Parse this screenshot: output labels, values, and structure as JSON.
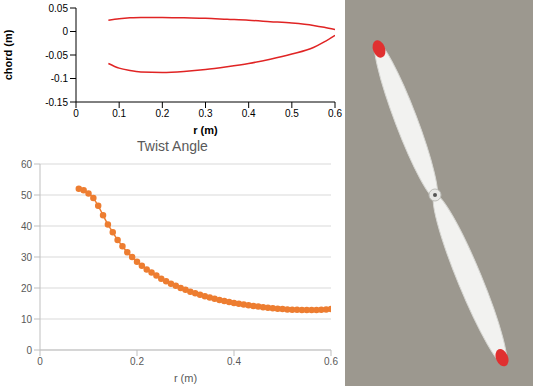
{
  "chart_data": [
    {
      "type": "line",
      "xlabel": "r (m)",
      "ylabel": "chord (m)",
      "x": [
        0.075,
        0.1,
        0.125,
        0.15,
        0.2,
        0.25,
        0.3,
        0.35,
        0.4,
        0.45,
        0.5,
        0.55,
        0.575,
        0.6
      ],
      "series": [
        {
          "color": "#e02424",
          "values": [
            0.024,
            0.027,
            0.029,
            0.03,
            0.03,
            0.029,
            0.028,
            0.026,
            0.024,
            0.021,
            0.018,
            0.013,
            0.009,
            0.004
          ]
        },
        {
          "color": "#e02424",
          "values": [
            -0.068,
            -0.078,
            -0.083,
            -0.086,
            -0.087,
            -0.085,
            -0.081,
            -0.075,
            -0.068,
            -0.059,
            -0.048,
            -0.034,
            -0.022,
            -0.008
          ]
        }
      ],
      "xlim": [
        0,
        0.6
      ],
      "xticks": [
        0,
        0.1,
        0.2,
        0.3,
        0.4,
        0.5,
        0.6
      ],
      "ylim": [
        -0.15,
        0.05
      ],
      "yticks": [
        -0.15,
        -0.1,
        -0.05,
        0,
        0.05
      ],
      "grid": false,
      "marker": "none",
      "line_style": "solid"
    },
    {
      "type": "line",
      "title": "Twist Angle",
      "xlabel": "r (m)",
      "x": [
        0.08,
        0.09,
        0.1,
        0.11,
        0.12,
        0.13,
        0.14,
        0.15,
        0.16,
        0.17,
        0.18,
        0.19,
        0.2,
        0.21,
        0.22,
        0.23,
        0.24,
        0.25,
        0.26,
        0.27,
        0.28,
        0.29,
        0.3,
        0.31,
        0.32,
        0.33,
        0.34,
        0.35,
        0.36,
        0.37,
        0.38,
        0.39,
        0.4,
        0.41,
        0.42,
        0.43,
        0.44,
        0.45,
        0.46,
        0.47,
        0.48,
        0.49,
        0.5,
        0.51,
        0.52,
        0.53,
        0.54,
        0.55,
        0.56,
        0.57,
        0.58,
        0.59,
        0.6
      ],
      "series": [
        {
          "color": "#ed7d31",
          "values": [
            52,
            51.5,
            50.5,
            49,
            46.5,
            43.5,
            40.5,
            38,
            35.5,
            33.5,
            31.5,
            30,
            28.5,
            27.2,
            26,
            25,
            24,
            23,
            22.2,
            21.4,
            20.7,
            20,
            19.4,
            18.8,
            18.3,
            17.8,
            17.3,
            16.9,
            16.5,
            16.1,
            15.8,
            15.5,
            15.2,
            14.9,
            14.7,
            14.4,
            14.2,
            14,
            13.8,
            13.6,
            13.5,
            13.3,
            13.2,
            13.1,
            13,
            13,
            12.9,
            12.9,
            12.9,
            12.9,
            13,
            13.1,
            13.2
          ]
        }
      ],
      "xlim": [
        0,
        0.6
      ],
      "xticks": [
        0,
        0.2,
        0.4,
        0.6
      ],
      "ylim": [
        0,
        60
      ],
      "yticks": [
        0,
        10,
        20,
        30,
        40,
        50,
        60
      ],
      "grid": true,
      "marker": "circle",
      "line_style": "solid"
    }
  ]
}
